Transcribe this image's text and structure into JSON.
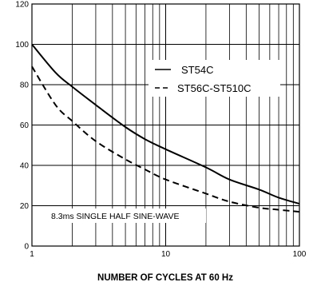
{
  "chart_data": {
    "type": "line",
    "xlabel": "NUMBER OF CYCLES AT 60 Hz",
    "ylabel": "",
    "x_scale": "log",
    "xlim": [
      1,
      100
    ],
    "ylim": [
      0,
      120
    ],
    "x_ticks": [
      "1",
      "10",
      "100"
    ],
    "y_ticks": [
      "0",
      "20",
      "40",
      "60",
      "80",
      "100",
      "120"
    ],
    "grid": true,
    "legend_position": "top-right",
    "annotation": "8.3ms SINGLE HALF SINE-WAVE",
    "series": [
      {
        "name": "ST54C",
        "style": "solid",
        "x": [
          1,
          1.5,
          2,
          3,
          5,
          7,
          10,
          20,
          30,
          50,
          70,
          100
        ],
        "y": [
          100,
          86,
          79,
          70,
          59,
          53,
          48,
          39,
          33,
          28,
          24,
          21
        ]
      },
      {
        "name": "ST56C-ST510C",
        "style": "dashed",
        "x": [
          1,
          1.5,
          2,
          3,
          5,
          7,
          10,
          20,
          30,
          50,
          70,
          100
        ],
        "y": [
          89,
          70,
          62,
          52,
          43,
          38,
          33,
          26,
          22,
          19,
          18,
          17
        ]
      }
    ]
  }
}
